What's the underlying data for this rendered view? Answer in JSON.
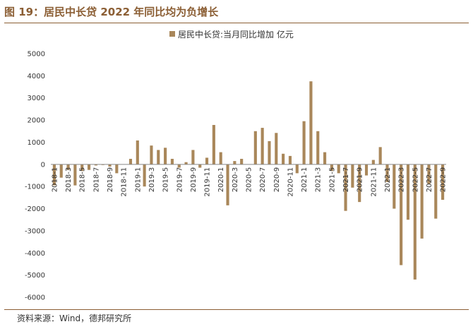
{
  "title": "图 19：居民中长贷 2022 年同比均为负增长",
  "source": "资料来源：Wind，德邦研究所",
  "colors": {
    "bar": "#a9875a",
    "accent": "#8b5e34",
    "axis": "#888888"
  },
  "chart_data": {
    "type": "bar",
    "legend": "居民中长贷:当月同比增加 亿元",
    "legend_position": "top-center",
    "grid": false,
    "ylim": [
      -6000,
      5000
    ],
    "yticks": [
      5000,
      4000,
      3000,
      2000,
      1000,
      0,
      -1000,
      -2000,
      -3000,
      -4000,
      -5000,
      -6000
    ],
    "categories": [
      "2018-1",
      "2018-2",
      "2018-3",
      "2018-4",
      "2018-5",
      "2018-6",
      "2018-7",
      "2018-8",
      "2018-9",
      "2018-10",
      "2018-11",
      "2018-12",
      "2019-1",
      "2019-2",
      "2019-3",
      "2019-4",
      "2019-5",
      "2019-6",
      "2019-7",
      "2019-8",
      "2019-9",
      "2019-10",
      "2019-11",
      "2019-12",
      "2020-1",
      "2020-2",
      "2020-3",
      "2020-4",
      "2020-5",
      "2020-6",
      "2020-7",
      "2020-8",
      "2020-9",
      "2020-10",
      "2020-11",
      "2020-12",
      "2021-1",
      "2021-2",
      "2021-3",
      "2021-4",
      "2021-5",
      "2021-6",
      "2021-7",
      "2021-8",
      "2021-9",
      "2021-10",
      "2021-11",
      "2021-12",
      "2022-1",
      "2022-2",
      "2022-3",
      "2022-4",
      "2022-5",
      "2022-6",
      "2022-7",
      "2022-8",
      "2022-9"
    ],
    "tick_labels": [
      "2018-1",
      "2018-3",
      "2018-5",
      "2018-7",
      "2018-9",
      "2018-11",
      "2019-1",
      "2019-3",
      "2019-5",
      "2019-7",
      "2019-9",
      "2019-11",
      "2020-1",
      "2020-3",
      "2020-5",
      "2020-7",
      "2020-9",
      "2020-11",
      "2021-1",
      "2021-3",
      "2021-5",
      "2021-7",
      "2021-9",
      "2021-11",
      "2022-1",
      "2022-3",
      "2022-5",
      "2022-7",
      "2022-9"
    ],
    "values": [
      -950,
      -600,
      -250,
      -950,
      -300,
      -250,
      -50,
      -30,
      -100,
      -400,
      0,
      250,
      1080,
      -1000,
      850,
      650,
      750,
      250,
      -150,
      100,
      650,
      -150,
      300,
      1780,
      550,
      -1850,
      150,
      250,
      0,
      1500,
      1650,
      1050,
      1420,
      480,
      380,
      -400,
      1950,
      3750,
      1500,
      550,
      -300,
      -400,
      -2100,
      -1050,
      -1700,
      -500,
      200,
      780,
      -800,
      -2000,
      -4550,
      -2500,
      -5200,
      -3350,
      -900,
      -2450,
      -1600
    ]
  }
}
